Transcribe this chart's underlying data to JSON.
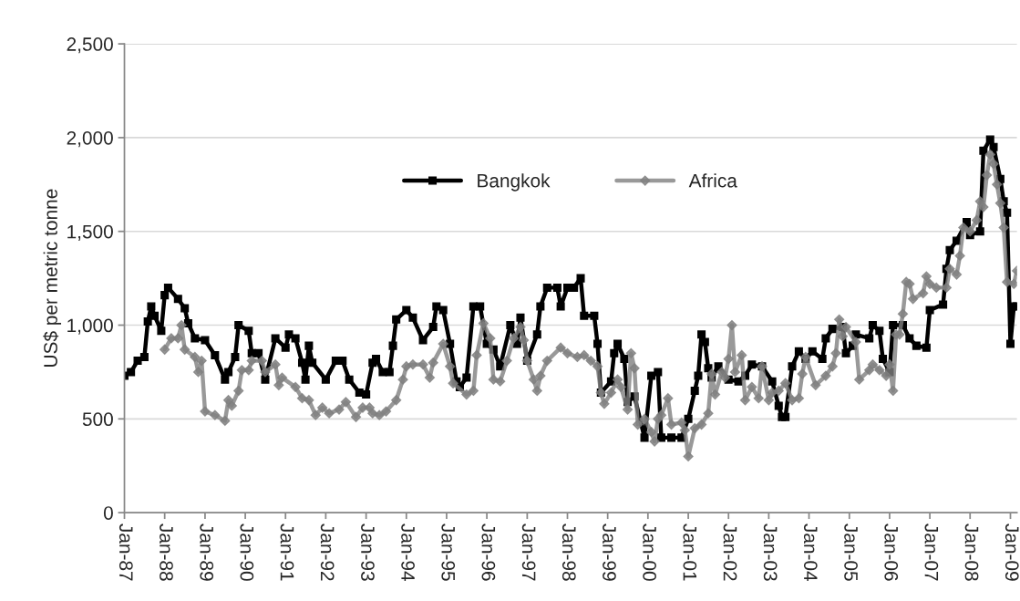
{
  "chart_data": {
    "type": "line",
    "ylabel": "US$ per metric tonne",
    "xlim": [
      "1987-01",
      "2009-03"
    ],
    "xticks": [
      {
        "value": "1987-01",
        "label": "Jan-87"
      },
      {
        "value": "1988-01",
        "label": "Jan-88"
      },
      {
        "value": "1989-01",
        "label": "Jan-89"
      },
      {
        "value": "1990-01",
        "label": "Jan-90"
      },
      {
        "value": "1991-01",
        "label": "Jan-91"
      },
      {
        "value": "1992-01",
        "label": "Jan-92"
      },
      {
        "value": "1993-01",
        "label": "Jan-93"
      },
      {
        "value": "1994-01",
        "label": "Jan-94"
      },
      {
        "value": "1995-01",
        "label": "Jan-95"
      },
      {
        "value": "1996-01",
        "label": "Jan-96"
      },
      {
        "value": "1997-01",
        "label": "Jan-97"
      },
      {
        "value": "1998-01",
        "label": "Jan-98"
      },
      {
        "value": "1999-01",
        "label": "Jan-99"
      },
      {
        "value": "2000-01",
        "label": "Jan-00"
      },
      {
        "value": "2001-01",
        "label": "Jan-01"
      },
      {
        "value": "2002-01",
        "label": "Jan-02"
      },
      {
        "value": "2003-01",
        "label": "Jan-03"
      },
      {
        "value": "2004-01",
        "label": "Jan-04"
      },
      {
        "value": "2005-01",
        "label": "Jan-05"
      },
      {
        "value": "2006-01",
        "label": "Jan-06"
      },
      {
        "value": "2007-01",
        "label": "Jan-07"
      },
      {
        "value": "2008-01",
        "label": "Jan-08"
      },
      {
        "value": "2009-01",
        "label": "Jan-09"
      }
    ],
    "ylim": [
      0,
      2500
    ],
    "yticks": [
      0,
      500,
      {
        "value": 1000,
        "label": "1,000"
      },
      {
        "value": 1500,
        "label": "1,500"
      },
      {
        "value": 2000,
        "label": "2,000"
      },
      {
        "value": 2500,
        "label": "2,500"
      }
    ],
    "grid": "y",
    "legend": "top",
    "series": [
      {
        "name": "Bangkok",
        "color": "#000000",
        "marker": "square",
        "x": [
          "1987-01",
          "1987-03",
          "1987-05",
          "1987-07",
          "1987-08",
          "1987-09",
          "1987-10",
          "1987-12",
          "1988-01",
          "1988-02",
          "1988-05",
          "1988-07",
          "1988-08",
          "1988-10",
          "1989-01",
          "1989-04",
          "1989-07",
          "1989-08",
          "1989-10",
          "1989-11",
          "1990-02",
          "1990-03",
          "1990-05",
          "1990-07",
          "1990-10",
          "1991-01",
          "1991-02",
          "1991-04",
          "1991-06",
          "1991-07",
          "1991-08",
          "1991-09",
          "1992-01",
          "1992-04",
          "1992-06",
          "1992-08",
          "1992-11",
          "1993-01",
          "1993-03",
          "1993-04",
          "1993-06",
          "1993-08",
          "1993-09",
          "1993-10",
          "1994-01",
          "1994-03",
          "1994-06",
          "1994-09",
          "1994-10",
          "1994-12",
          "1995-02",
          "1995-04",
          "1995-05",
          "1995-07",
          "1995-09",
          "1995-11",
          "1996-01",
          "1996-03",
          "1996-05",
          "1996-08",
          "1996-10",
          "1996-11",
          "1997-01",
          "1997-04",
          "1997-05",
          "1997-07",
          "1997-10",
          "1997-11",
          "1998-01",
          "1998-03",
          "1998-05",
          "1998-06",
          "1998-09",
          "1998-10",
          "1998-11",
          "1999-02",
          "1999-03",
          "1999-04",
          "1999-06",
          "1999-07",
          "1999-09",
          "1999-12",
          "2000-02",
          "2000-04",
          "2000-05",
          "2000-08",
          "2000-11",
          "2001-01",
          "2001-03",
          "2001-04",
          "2001-05",
          "2001-06",
          "2001-07",
          "2001-08",
          "2001-10",
          "2002-01",
          "2002-04",
          "2002-06",
          "2002-08",
          "2002-11",
          "2003-02",
          "2003-04",
          "2003-05",
          "2003-06",
          "2003-08",
          "2003-10",
          "2003-12",
          "2004-02",
          "2004-05",
          "2004-06",
          "2004-08",
          "2004-11",
          "2004-12",
          "2005-02",
          "2005-03",
          "2005-07",
          "2005-08",
          "2005-10",
          "2005-11",
          "2006-01",
          "2006-02",
          "2006-05",
          "2006-07",
          "2006-09",
          "2006-12",
          "2007-01",
          "2007-05",
          "2007-06",
          "2007-07",
          "2007-09",
          "2007-12",
          "2008-01",
          "2008-04",
          "2008-05",
          "2008-07",
          "2008-08",
          "2008-10",
          "2008-11",
          "2008-12",
          "2009-01",
          "2009-02",
          "2009-03"
        ],
        "values": [
          730,
          750,
          810,
          830,
          1020,
          1100,
          1050,
          970,
          1160,
          1200,
          1140,
          1090,
          1010,
          930,
          920,
          840,
          710,
          750,
          830,
          1000,
          970,
          850,
          850,
          710,
          930,
          880,
          950,
          930,
          800,
          710,
          890,
          800,
          710,
          810,
          810,
          710,
          640,
          630,
          800,
          820,
          750,
          750,
          890,
          1030,
          1080,
          1040,
          920,
          990,
          1100,
          1080,
          900,
          700,
          670,
          720,
          1100,
          1100,
          900,
          870,
          780,
          1000,
          900,
          1040,
          810,
          950,
          1100,
          1200,
          1200,
          1100,
          1200,
          1200,
          1250,
          1050,
          1050,
          900,
          640,
          700,
          850,
          900,
          820,
          590,
          620,
          400,
          730,
          750,
          400,
          400,
          400,
          500,
          650,
          730,
          950,
          910,
          770,
          720,
          780,
          710,
          700,
          730,
          790,
          780,
          700,
          570,
          510,
          510,
          780,
          860,
          820,
          860,
          820,
          930,
          980,
          990,
          850,
          890,
          950,
          930,
          1000,
          970,
          820,
          750,
          1000,
          1000,
          930,
          890,
          880,
          1080,
          1110,
          1300,
          1400,
          1450,
          1550,
          1480,
          1500,
          1930,
          1990,
          1950,
          1780,
          1660,
          1600,
          900,
          1100,
          1100
        ]
      },
      {
        "name": "Africa",
        "color": "#7f7f7f",
        "marker": "diamond",
        "x": [
          "1988-01",
          "1988-03",
          "1988-05",
          "1988-06",
          "1988-07",
          "1988-10",
          "1988-11",
          "1988-12",
          "1989-01",
          "1989-04",
          "1989-07",
          "1989-08",
          "1989-09",
          "1989-11",
          "1989-12",
          "1990-02",
          "1990-03",
          "1990-06",
          "1990-07",
          "1990-10",
          "1990-11",
          "1990-12",
          "1991-04",
          "1991-06",
          "1991-08",
          "1991-10",
          "1991-12",
          "1992-02",
          "1992-05",
          "1992-07",
          "1992-10",
          "1992-12",
          "1993-02",
          "1993-03",
          "1993-05",
          "1993-07",
          "1993-10",
          "1993-12",
          "1994-01",
          "1994-03",
          "1994-06",
          "1994-08",
          "1994-09",
          "1994-12",
          "1995-02",
          "1995-03",
          "1995-07",
          "1995-09",
          "1995-10",
          "1995-12",
          "1996-02",
          "1996-03",
          "1996-05",
          "1996-07",
          "1996-09",
          "1996-11",
          "1996-12",
          "1997-01",
          "1997-03",
          "1997-04",
          "1997-05",
          "1997-07",
          "1997-11",
          "1998-01",
          "1998-04",
          "1998-06",
          "1998-08",
          "1998-10",
          "1998-11",
          "1998-12",
          "1999-02",
          "1999-04",
          "1999-05",
          "1999-07",
          "1999-08",
          "1999-09",
          "1999-10",
          "1999-12",
          "2000-02",
          "2000-03",
          "2000-04",
          "2000-05",
          "2000-07",
          "2000-08",
          "2000-11",
          "2000-12",
          "2001-01",
          "2001-03",
          "2001-05",
          "2001-07",
          "2001-08",
          "2001-09",
          "2001-11",
          "2001-12",
          "2002-01",
          "2002-02",
          "2002-03",
          "2002-05",
          "2002-06",
          "2002-08",
          "2002-10",
          "2002-11",
          "2003-01",
          "2003-02",
          "2003-04",
          "2003-06",
          "2003-08",
          "2003-10",
          "2003-11",
          "2003-12",
          "2004-03",
          "2004-06",
          "2004-08",
          "2004-09",
          "2004-10",
          "2004-11",
          "2004-12",
          "2005-03",
          "2005-04",
          "2005-07",
          "2005-08",
          "2005-10",
          "2005-12",
          "2006-01",
          "2006-02",
          "2006-03",
          "2006-04",
          "2006-05",
          "2006-06",
          "2006-07",
          "2006-08",
          "2006-11",
          "2006-12",
          "2007-01",
          "2007-03",
          "2007-06",
          "2007-07",
          "2007-09",
          "2007-10",
          "2007-11",
          "2008-01",
          "2008-03",
          "2008-04",
          "2008-05",
          "2008-06",
          "2008-07",
          "2008-08",
          "2008-09",
          "2008-10",
          "2008-11",
          "2008-12",
          "2009-02",
          "2009-03"
        ],
        "values": [
          870,
          930,
          930,
          1000,
          870,
          830,
          750,
          810,
          540,
          520,
          490,
          600,
          570,
          650,
          760,
          760,
          810,
          810,
          750,
          790,
          680,
          720,
          670,
          610,
          600,
          520,
          560,
          530,
          550,
          590,
          510,
          560,
          560,
          530,
          520,
          540,
          600,
          710,
          780,
          790,
          790,
          720,
          800,
          900,
          780,
          690,
          630,
          650,
          840,
          1010,
          930,
          710,
          700,
          810,
          930,
          990,
          920,
          810,
          710,
          650,
          730,
          810,
          880,
          850,
          830,
          840,
          810,
          780,
          640,
          580,
          640,
          710,
          670,
          550,
          850,
          770,
          470,
          500,
          430,
          380,
          500,
          520,
          610,
          470,
          480,
          440,
          300,
          450,
          470,
          530,
          740,
          630,
          750,
          720,
          820,
          1000,
          750,
          840,
          600,
          670,
          610,
          780,
          600,
          640,
          650,
          690,
          600,
          610,
          740,
          830,
          680,
          730,
          780,
          850,
          1030,
          940,
          990,
          910,
          710,
          760,
          790,
          760,
          730,
          790,
          650,
          950,
          950,
          1060,
          1230,
          1220,
          1140,
          1170,
          1260,
          1220,
          1200,
          1200,
          1300,
          1270,
          1370,
          1520,
          1500,
          1560,
          1660,
          1630,
          1800,
          1910,
          1860,
          1750,
          1650,
          1520,
          1230,
          1220,
          1290
        ]
      }
    ]
  }
}
